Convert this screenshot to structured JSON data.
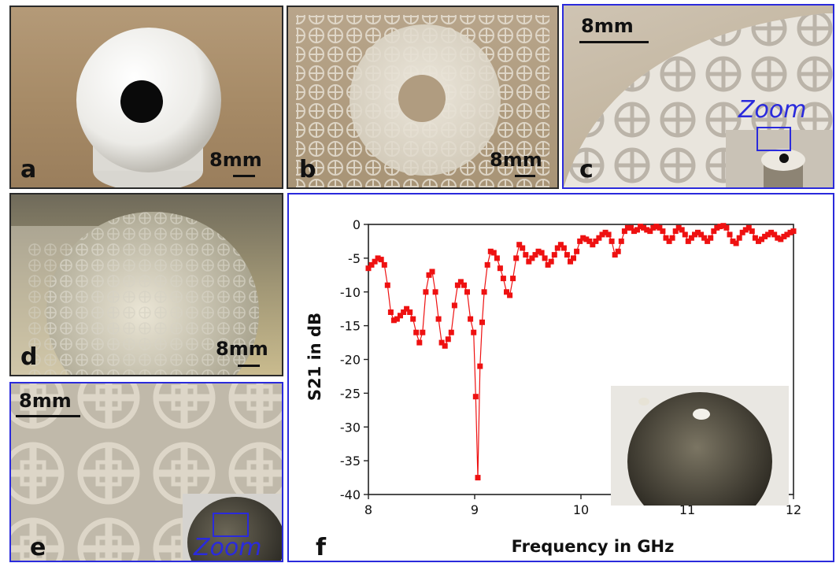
{
  "figure": {
    "panels": {
      "a": {
        "label": "a",
        "scale_bar": "8mm"
      },
      "b": {
        "label": "b",
        "scale_bar": "8mm"
      },
      "c": {
        "label": "c",
        "scale_bar": "8mm",
        "zoom_label": "Zoom"
      },
      "d": {
        "label": "d",
        "scale_bar": "8mm"
      },
      "e": {
        "label": "e",
        "scale_bar": "8mm",
        "zoom_label": "Zoom"
      },
      "f": {
        "label": "f"
      }
    },
    "colors": {
      "border_blue": "#2a2adc",
      "border_dark": "#2a2a2a",
      "series_red": "#ee1111"
    }
  },
  "chart_data": {
    "type": "line",
    "title": "",
    "xlabel": "Frequency in GHz",
    "ylabel": "S21 in dB",
    "xlim": [
      8,
      12
    ],
    "ylim": [
      -40,
      0
    ],
    "x_ticks": [
      8,
      9,
      10,
      11,
      12
    ],
    "y_ticks": [
      0,
      -5,
      -10,
      -15,
      -20,
      -25,
      -30,
      -35,
      -40
    ],
    "x_tick_labels": [
      "8",
      "9",
      "10",
      "11",
      "12"
    ],
    "y_tick_labels": [
      "0",
      "-5",
      "-10",
      "-15",
      "-20",
      "-25",
      "-30",
      "-35",
      "-40"
    ],
    "legend": "none",
    "grid": false,
    "series": [
      {
        "marker": "square",
        "x": [
          8.0,
          8.03,
          8.06,
          8.09,
          8.12,
          8.15,
          8.18,
          8.21,
          8.24,
          8.27,
          8.3,
          8.33,
          8.36,
          8.39,
          8.42,
          8.45,
          8.48,
          8.51,
          8.54,
          8.57,
          8.6,
          8.63,
          8.66,
          8.69,
          8.72,
          8.75,
          8.78,
          8.81,
          8.84,
          8.87,
          8.9,
          8.93,
          8.96,
          8.99,
          9.01,
          9.03,
          9.05,
          9.07,
          9.09,
          9.12,
          9.15,
          9.18,
          9.21,
          9.24,
          9.27,
          9.3,
          9.33,
          9.36,
          9.39,
          9.42,
          9.45,
          9.48,
          9.51,
          9.54,
          9.57,
          9.6,
          9.63,
          9.66,
          9.69,
          9.72,
          9.75,
          9.78,
          9.81,
          9.84,
          9.87,
          9.9,
          9.93,
          9.96,
          9.99,
          10.02,
          10.05,
          10.08,
          10.11,
          10.14,
          10.17,
          10.2,
          10.23,
          10.26,
          10.29,
          10.32,
          10.35,
          10.38,
          10.41,
          10.44,
          10.47,
          10.5,
          10.53,
          10.56,
          10.59,
          10.62,
          10.65,
          10.68,
          10.71,
          10.74,
          10.77,
          10.8,
          10.83,
          10.86,
          10.89,
          10.92,
          10.95,
          10.98,
          11.01,
          11.04,
          11.07,
          11.1,
          11.13,
          11.16,
          11.19,
          11.22,
          11.25,
          11.28,
          11.31,
          11.34,
          11.37,
          11.4,
          11.43,
          11.46,
          11.49,
          11.52,
          11.55,
          11.58,
          11.61,
          11.64,
          11.67,
          11.7,
          11.73,
          11.76,
          11.79,
          11.82,
          11.85,
          11.88,
          11.91,
          11.94,
          11.97,
          12.0
        ],
        "y": [
          -6.5,
          -6,
          -5.5,
          -5,
          -5.2,
          -6,
          -9,
          -13,
          -14.2,
          -14,
          -13.5,
          -13,
          -12.5,
          -13,
          -14,
          -16,
          -17.5,
          -16,
          -10,
          -7.5,
          -7,
          -10,
          -14,
          -17.5,
          -18,
          -17,
          -16,
          -12,
          -9,
          -8.5,
          -9,
          -10,
          -14,
          -16,
          -25.5,
          -37.5,
          -21,
          -14.5,
          -10,
          -6,
          -4,
          -4.2,
          -5,
          -6.5,
          -8,
          -10,
          -10.5,
          -8,
          -5,
          -3,
          -3.5,
          -4.5,
          -5.5,
          -5,
          -4.5,
          -4,
          -4.2,
          -5,
          -6,
          -5.5,
          -4.5,
          -3.5,
          -3,
          -3.5,
          -4.5,
          -5.5,
          -5,
          -4,
          -2.5,
          -2,
          -2.2,
          -2.5,
          -3,
          -2.5,
          -2,
          -1.5,
          -1.2,
          -1.5,
          -2.5,
          -4.5,
          -4,
          -2.5,
          -1,
          -0.5,
          -0.5,
          -1,
          -0.8,
          -0.3,
          -0.5,
          -0.8,
          -1,
          -0.5,
          -0.3,
          -0.5,
          -1,
          -2,
          -2.5,
          -2,
          -1,
          -0.5,
          -0.8,
          -1.5,
          -2.5,
          -2,
          -1.5,
          -1.2,
          -1.5,
          -2,
          -2.5,
          -2,
          -1,
          -0.5,
          -0.3,
          -0.2,
          -0.5,
          -1.5,
          -2.5,
          -2.8,
          -2,
          -1.2,
          -0.8,
          -0.5,
          -1,
          -2,
          -2.5,
          -2.2,
          -1.8,
          -1.5,
          -1.2,
          -1.5,
          -2,
          -2.2,
          -1.8,
          -1.5,
          -1.2,
          -1
        ]
      }
    ]
  }
}
